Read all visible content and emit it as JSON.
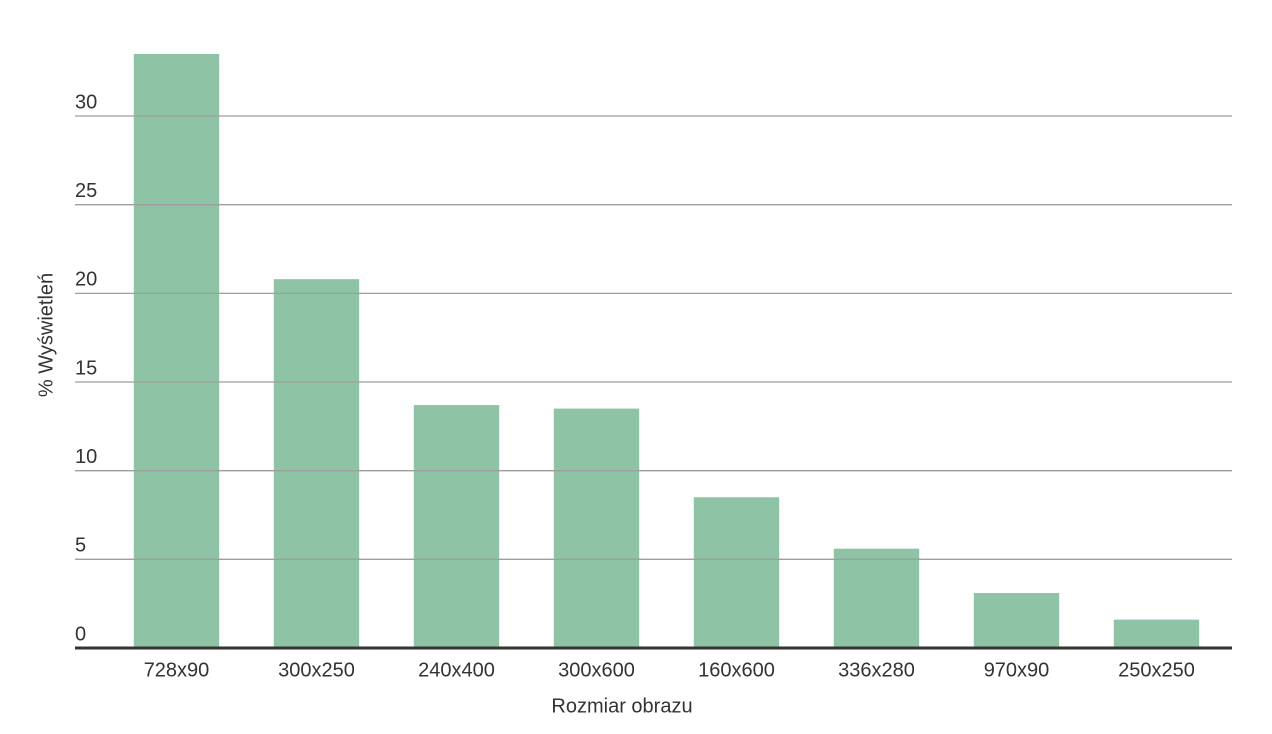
{
  "chart_data": {
    "type": "bar",
    "x_label": "Rozmiar obrazu",
    "y_label": "% Wyświetleń",
    "categories": [
      "728x90",
      "300x250",
      "240x400",
      "300x600",
      "160x600",
      "336x280",
      "970x90",
      "250x250"
    ],
    "values": [
      33.5,
      20.8,
      13.7,
      13.5,
      8.5,
      5.6,
      3.1,
      1.6
    ],
    "color": "#8fc3a5",
    "ylim": [
      0,
      34
    ],
    "yticks": [
      0,
      5,
      10,
      15,
      20,
      25,
      30
    ],
    "grid": true
  }
}
